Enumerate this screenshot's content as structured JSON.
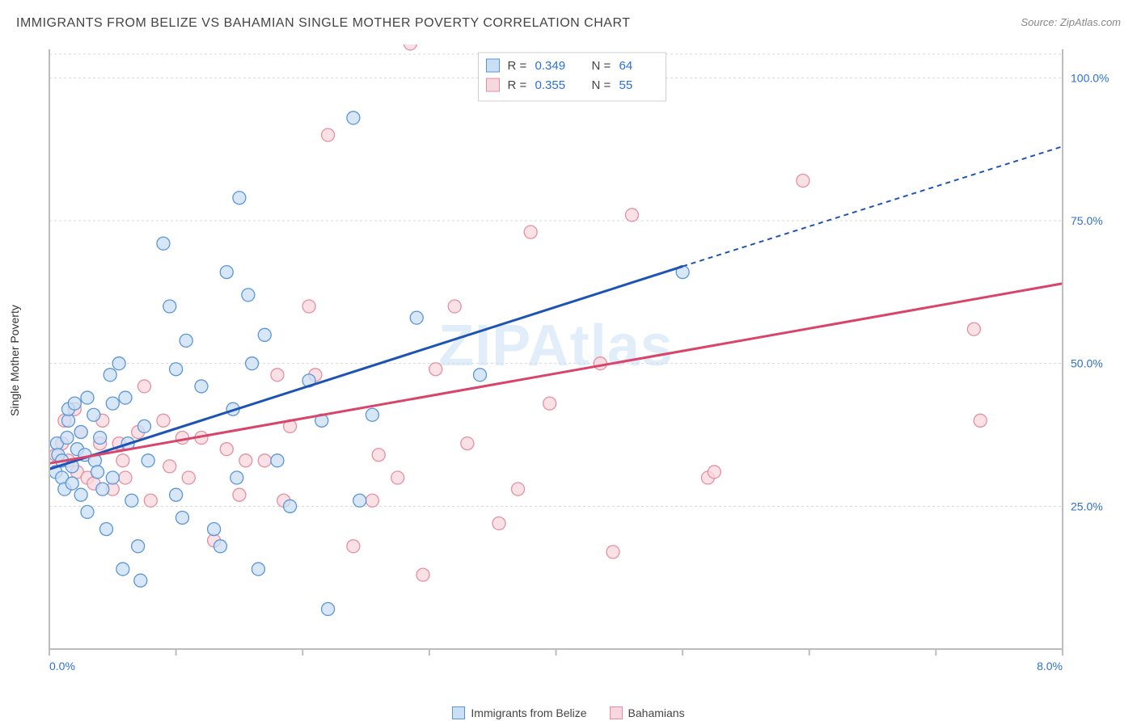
{
  "header": {
    "title": "IMMIGRANTS FROM BELIZE VS BAHAMIAN SINGLE MOTHER POVERTY CORRELATION CHART",
    "source_label": "Source: ZipAtlas.com"
  },
  "axes": {
    "ylabel": "Single Mother Poverty",
    "xmin": 0.0,
    "xmax": 8.0,
    "ymin": 0.0,
    "ymax": 105.0,
    "x_ticks": [
      0.0,
      8.0
    ],
    "x_tick_labels": [
      "0.0%",
      "8.0%"
    ],
    "y_ticks": [
      25.0,
      50.0,
      75.0,
      100.0
    ],
    "y_tick_labels": [
      "25.0%",
      "50.0%",
      "75.0%",
      "100.0%"
    ],
    "x_minor_ticks": [
      0,
      1,
      2,
      3,
      4,
      5,
      6,
      7,
      8
    ]
  },
  "style": {
    "background_color": "#ffffff",
    "grid_color": "#d8d8d8",
    "axis_color": "#bdbdbd",
    "label_color": "#2b6fd6",
    "title_color": "#444444",
    "title_fontsize": 16,
    "label_fontsize": 14,
    "watermark": "ZIPAtlas"
  },
  "series": [
    {
      "name": "Immigrants from Belize",
      "fill": "#c9dff5",
      "stroke": "#5a96d6",
      "trend_color": "#1d54b4",
      "R": "0.349",
      "N": "64",
      "trend": {
        "x0": 0.0,
        "y0": 31.5,
        "x1": 5.0,
        "y1": 67.0,
        "x2": 8.0,
        "y2": 88.0
      },
      "radius": 8,
      "points": [
        [
          0.05,
          31
        ],
        [
          0.06,
          36
        ],
        [
          0.07,
          34
        ],
        [
          0.1,
          33
        ],
        [
          0.1,
          30
        ],
        [
          0.12,
          28
        ],
        [
          0.14,
          37
        ],
        [
          0.15,
          40
        ],
        [
          0.15,
          42
        ],
        [
          0.18,
          32
        ],
        [
          0.18,
          29
        ],
        [
          0.2,
          43
        ],
        [
          0.22,
          35
        ],
        [
          0.25,
          27
        ],
        [
          0.25,
          38
        ],
        [
          0.28,
          34
        ],
        [
          0.3,
          44
        ],
        [
          0.3,
          24
        ],
        [
          0.35,
          41
        ],
        [
          0.36,
          33
        ],
        [
          0.38,
          31
        ],
        [
          0.4,
          37
        ],
        [
          0.42,
          28
        ],
        [
          0.45,
          21
        ],
        [
          0.48,
          48
        ],
        [
          0.5,
          30
        ],
        [
          0.5,
          43
        ],
        [
          0.55,
          50
        ],
        [
          0.58,
          14
        ],
        [
          0.6,
          44
        ],
        [
          0.62,
          36
        ],
        [
          0.65,
          26
        ],
        [
          0.7,
          18
        ],
        [
          0.72,
          12
        ],
        [
          0.75,
          39
        ],
        [
          0.78,
          33
        ],
        [
          0.9,
          71
        ],
        [
          0.95,
          60
        ],
        [
          1.0,
          49
        ],
        [
          1.0,
          27
        ],
        [
          1.05,
          23
        ],
        [
          1.08,
          54
        ],
        [
          1.2,
          46
        ],
        [
          1.3,
          21
        ],
        [
          1.35,
          18
        ],
        [
          1.4,
          66
        ],
        [
          1.45,
          42
        ],
        [
          1.48,
          30
        ],
        [
          1.5,
          79
        ],
        [
          1.57,
          62
        ],
        [
          1.6,
          50
        ],
        [
          1.65,
          14
        ],
        [
          1.7,
          55
        ],
        [
          1.8,
          33
        ],
        [
          1.9,
          25
        ],
        [
          2.05,
          47
        ],
        [
          2.15,
          40
        ],
        [
          2.2,
          7
        ],
        [
          2.4,
          93
        ],
        [
          2.45,
          26
        ],
        [
          2.55,
          41
        ],
        [
          2.9,
          58
        ],
        [
          3.4,
          48
        ],
        [
          5.0,
          66
        ]
      ]
    },
    {
      "name": "Bahamians",
      "fill": "#f8d7de",
      "stroke": "#e58fa2",
      "trend_color": "#d9446a",
      "R": "0.355",
      "N": "55",
      "trend": {
        "x0": 0.0,
        "y0": 32.5,
        "x1": 8.0,
        "y1": 64.0,
        "x2": 8.0,
        "y2": 64.0
      },
      "radius": 8,
      "points": [
        [
          0.05,
          34
        ],
        [
          0.1,
          36
        ],
        [
          0.12,
          40
        ],
        [
          0.15,
          33
        ],
        [
          0.2,
          42
        ],
        [
          0.22,
          31
        ],
        [
          0.25,
          38
        ],
        [
          0.3,
          30
        ],
        [
          0.35,
          29
        ],
        [
          0.4,
          36
        ],
        [
          0.42,
          40
        ],
        [
          0.5,
          28
        ],
        [
          0.55,
          36
        ],
        [
          0.58,
          33
        ],
        [
          0.6,
          30
        ],
        [
          0.7,
          38
        ],
        [
          0.75,
          46
        ],
        [
          0.8,
          26
        ],
        [
          0.9,
          40
        ],
        [
          0.95,
          32
        ],
        [
          1.05,
          37
        ],
        [
          1.1,
          30
        ],
        [
          1.2,
          37
        ],
        [
          1.3,
          19
        ],
        [
          1.4,
          35
        ],
        [
          1.5,
          27
        ],
        [
          1.55,
          33
        ],
        [
          1.7,
          33
        ],
        [
          1.8,
          48
        ],
        [
          1.85,
          26
        ],
        [
          1.9,
          39
        ],
        [
          2.05,
          60
        ],
        [
          2.1,
          48
        ],
        [
          2.2,
          90
        ],
        [
          2.4,
          18
        ],
        [
          2.55,
          26
        ],
        [
          2.6,
          34
        ],
        [
          2.75,
          30
        ],
        [
          2.85,
          106
        ],
        [
          2.95,
          13
        ],
        [
          3.05,
          49
        ],
        [
          3.2,
          60
        ],
        [
          3.3,
          36
        ],
        [
          3.55,
          22
        ],
        [
          3.7,
          28
        ],
        [
          3.8,
          73
        ],
        [
          3.95,
          43
        ],
        [
          4.35,
          50
        ],
        [
          4.45,
          17
        ],
        [
          4.6,
          76
        ],
        [
          5.2,
          30
        ],
        [
          5.25,
          31
        ],
        [
          5.95,
          82
        ],
        [
          7.3,
          56
        ],
        [
          7.35,
          40
        ]
      ]
    }
  ],
  "stats_box": {
    "bg": "#ffffff",
    "border": "#cfcfcf",
    "rows": [
      {
        "swatch_fill": "#c9dff5",
        "swatch_stroke": "#5a96d6",
        "R": "0.349",
        "N": "64"
      },
      {
        "swatch_fill": "#f8d7de",
        "swatch_stroke": "#e58fa2",
        "R": "0.355",
        "N": "55"
      }
    ]
  },
  "bottom_legend": [
    {
      "label": "Immigrants from Belize",
      "fill": "#c9dff5",
      "stroke": "#5a96d6"
    },
    {
      "label": "Bahamians",
      "fill": "#f8d7de",
      "stroke": "#e58fa2"
    }
  ]
}
